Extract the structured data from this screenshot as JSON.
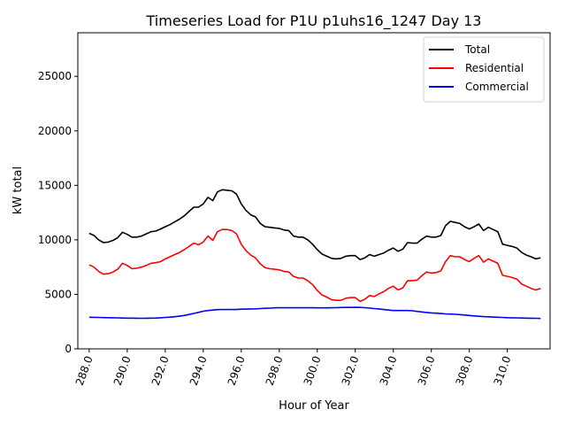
{
  "chart_data": {
    "type": "line",
    "title": "Timeseries Load for P1U p1uhs16_1247  Day 13",
    "xlabel": "Hour of Year",
    "ylabel": "kW total",
    "xlim": [
      287.4,
      312.25
    ],
    "ylim": [
      0,
      29000
    ],
    "grid": false,
    "legend_position": "top-right",
    "xticks": [
      288,
      290,
      292,
      294,
      296,
      298,
      300,
      302,
      304,
      306,
      308,
      310
    ],
    "xtick_labels": [
      "288.0",
      "290.0",
      "292.0",
      "294.0",
      "296.0",
      "298.0",
      "300.0",
      "302.0",
      "304.0",
      "306.0",
      "308.0",
      "310.0"
    ],
    "yticks": [
      0,
      5000,
      10000,
      15000,
      20000,
      25000
    ],
    "ytick_labels": [
      "0",
      "5000",
      "10000",
      "15000",
      "20000",
      "25000"
    ],
    "x": [
      288.0,
      288.25,
      288.5,
      288.75,
      289.0,
      289.25,
      289.5,
      289.75,
      290.0,
      290.25,
      290.5,
      290.75,
      291.0,
      291.25,
      291.5,
      291.75,
      292.0,
      292.25,
      292.5,
      292.75,
      293.0,
      293.25,
      293.5,
      293.75,
      294.0,
      294.25,
      294.5,
      294.75,
      295.0,
      295.25,
      295.5,
      295.75,
      296.0,
      296.25,
      296.5,
      296.75,
      297.0,
      297.25,
      297.5,
      297.75,
      298.0,
      298.25,
      298.5,
      298.75,
      299.0,
      299.25,
      299.5,
      299.75,
      300.0,
      300.25,
      300.5,
      300.75,
      301.0,
      301.25,
      301.5,
      301.75,
      302.0,
      302.25,
      302.5,
      302.75,
      303.0,
      303.25,
      303.5,
      303.75,
      304.0,
      304.25,
      304.5,
      304.75,
      305.0,
      305.25,
      305.5,
      305.75,
      306.0,
      306.25,
      306.5,
      306.75,
      307.0,
      307.25,
      307.5,
      307.75,
      308.0,
      308.25,
      308.5,
      308.75,
      309.0,
      309.25,
      309.5,
      309.75,
      310.0,
      310.25,
      310.5,
      310.75,
      311.0,
      311.25,
      311.5,
      311.75
    ],
    "series": [
      {
        "name": "Total",
        "color": "#000000",
        "values": [
          10600,
          10400,
          10000,
          9750,
          9800,
          9950,
          10200,
          10700,
          10500,
          10250,
          10250,
          10350,
          10550,
          10750,
          10800,
          11000,
          11200,
          11400,
          11650,
          11900,
          12200,
          12600,
          13000,
          13000,
          13300,
          13900,
          13600,
          14400,
          14600,
          14550,
          14500,
          14200,
          13300,
          12700,
          12300,
          12100,
          11500,
          11200,
          11150,
          11100,
          11050,
          10900,
          10850,
          10350,
          10250,
          10250,
          10000,
          9600,
          9100,
          8700,
          8500,
          8300,
          8250,
          8300,
          8500,
          8550,
          8550,
          8200,
          8350,
          8650,
          8500,
          8650,
          8800,
          9050,
          9250,
          8950,
          9150,
          9750,
          9700,
          9700,
          10050,
          10350,
          10250,
          10250,
          10400,
          11300,
          11700,
          11600,
          11500,
          11200,
          11000,
          11200,
          11450,
          10850,
          11150,
          10950,
          10750,
          9600,
          9500,
          9400,
          9250,
          8850,
          8600,
          8450,
          8250,
          8350
        ]
      },
      {
        "name": "Residential",
        "color": "#ff0000",
        "values": [
          7700,
          7500,
          7100,
          6850,
          6900,
          7050,
          7300,
          7850,
          7650,
          7350,
          7400,
          7500,
          7650,
          7850,
          7900,
          8000,
          8250,
          8450,
          8650,
          8850,
          9100,
          9400,
          9700,
          9550,
          9800,
          10350,
          9950,
          10750,
          10950,
          10950,
          10850,
          10550,
          9600,
          9000,
          8600,
          8350,
          7800,
          7450,
          7350,
          7300,
          7250,
          7100,
          7050,
          6650,
          6500,
          6500,
          6250,
          5900,
          5350,
          4950,
          4750,
          4500,
          4450,
          4450,
          4650,
          4700,
          4700,
          4350,
          4550,
          4900,
          4800,
          5050,
          5250,
          5550,
          5750,
          5400,
          5600,
          6250,
          6250,
          6300,
          6700,
          7050,
          6950,
          7000,
          7150,
          8000,
          8550,
          8450,
          8450,
          8200,
          8000,
          8300,
          8550,
          7950,
          8250,
          8050,
          7850,
          6750,
          6650,
          6550,
          6400,
          5950,
          5750,
          5550,
          5400,
          5550
        ]
      },
      {
        "name": "Commercial",
        "color": "#0000ff",
        "values": [
          2900,
          2890,
          2880,
          2870,
          2860,
          2850,
          2840,
          2830,
          2820,
          2815,
          2810,
          2805,
          2810,
          2820,
          2830,
          2850,
          2880,
          2910,
          2950,
          3000,
          3060,
          3150,
          3250,
          3350,
          3450,
          3520,
          3560,
          3600,
          3610,
          3610,
          3610,
          3610,
          3640,
          3650,
          3660,
          3670,
          3700,
          3720,
          3740,
          3760,
          3780,
          3770,
          3770,
          3770,
          3770,
          3770,
          3770,
          3770,
          3760,
          3760,
          3760,
          3770,
          3780,
          3790,
          3800,
          3800,
          3810,
          3800,
          3780,
          3740,
          3700,
          3660,
          3610,
          3560,
          3520,
          3520,
          3520,
          3520,
          3490,
          3440,
          3390,
          3340,
          3300,
          3270,
          3240,
          3210,
          3190,
          3170,
          3140,
          3100,
          3060,
          3020,
          2990,
          2960,
          2940,
          2920,
          2900,
          2880,
          2860,
          2850,
          2840,
          2830,
          2820,
          2810,
          2800,
          2790
        ]
      }
    ]
  }
}
